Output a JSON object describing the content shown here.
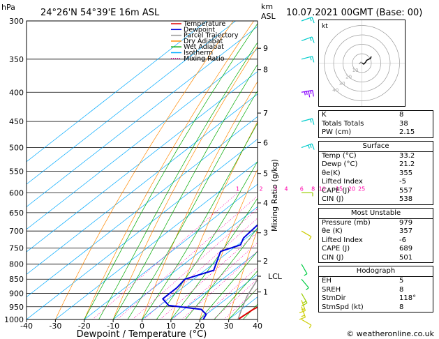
{
  "header": {
    "location": "24°26'N  54°39'E  16m  ASL",
    "pressure_unit": "hPa",
    "km_unit": "km",
    "asl_unit": "ASL",
    "valid_time": "10.07.2021  00GMT  (Base: 00)"
  },
  "chart_data": {
    "type": "line",
    "title": "",
    "xlabel": "Dewpoint / Temperature (°C)",
    "ylabel": "hPa",
    "secondary_ylabel": "Mixing Ratio (g/kg)",
    "xlim": [
      -40,
      40
    ],
    "ylim": [
      1000,
      300
    ],
    "x_ticks": [
      -40,
      -30,
      -20,
      -10,
      0,
      10,
      20,
      30,
      40
    ],
    "pressure_levels": [
      300,
      350,
      400,
      450,
      500,
      550,
      600,
      650,
      700,
      750,
      800,
      850,
      900,
      950,
      1000
    ],
    "km_ticks": [
      {
        "label": "9",
        "p": 335
      },
      {
        "label": "8",
        "p": 365
      },
      {
        "label": "7",
        "p": 435
      },
      {
        "label": "6",
        "p": 490
      },
      {
        "label": "5",
        "p": 555
      },
      {
        "label": "4",
        "p": 625
      },
      {
        "label": "3",
        "p": 705
      },
      {
        "label": "2",
        "p": 790
      },
      {
        "label": "LCL",
        "p": 840
      },
      {
        "label": "1",
        "p": 895
      }
    ],
    "mixing_ratio_labels": [
      "1",
      "2",
      "3",
      "4",
      "6",
      "8",
      "10",
      "15",
      "20",
      "25"
    ],
    "legend": {
      "position": "top-right-inside",
      "entries": [
        {
          "name": "Temperature",
          "color": "#dd0000"
        },
        {
          "name": "Dewpoint",
          "color": "#0000dd"
        },
        {
          "name": "Parcel Trajectory",
          "color": "#999999"
        },
        {
          "name": "Dry Adiabat",
          "color": "#ff8800"
        },
        {
          "name": "Wet Adiabat",
          "color": "#00aa00"
        },
        {
          "name": "Isotherm",
          "color": "#00aaff"
        },
        {
          "name": "Mixing Ratio",
          "color": "#ff00aa"
        }
      ]
    },
    "series": [
      {
        "name": "Temperature",
        "color": "#dd0000",
        "points": [
          [
            33.2,
            1000
          ],
          [
            34,
            960
          ],
          [
            36,
            930
          ],
          [
            34,
            880
          ],
          [
            31,
            830
          ],
          [
            29.5,
            780
          ],
          [
            26,
            720
          ],
          [
            22,
            650
          ],
          [
            18,
            600
          ],
          [
            12,
            540
          ],
          [
            7.5,
            500
          ],
          [
            5,
            470
          ],
          [
            2.5,
            445
          ],
          [
            -2,
            420
          ],
          [
            -4,
            400
          ],
          [
            -6,
            370
          ],
          [
            -6,
            350
          ],
          [
            -6.5,
            330
          ],
          [
            -9,
            300
          ]
        ]
      },
      {
        "name": "Dewpoint",
        "color": "#0000dd",
        "points": [
          [
            21.2,
            1000
          ],
          [
            20,
            980
          ],
          [
            16,
            960
          ],
          [
            3,
            945
          ],
          [
            -2,
            920
          ],
          [
            -2,
            880
          ],
          [
            -3,
            850
          ],
          [
            3,
            820
          ],
          [
            -3,
            760
          ],
          [
            1,
            740
          ],
          [
            -1,
            720
          ],
          [
            -2,
            680
          ],
          [
            -3,
            640
          ],
          [
            -5,
            600
          ],
          [
            -5,
            570
          ],
          [
            -4,
            550
          ],
          [
            2,
            540
          ],
          [
            1,
            500
          ],
          [
            2,
            480
          ],
          [
            2,
            460
          ],
          [
            1,
            445
          ],
          [
            -25,
            440
          ],
          [
            8,
            405
          ],
          [
            -25,
            375
          ],
          [
            -25,
            360
          ],
          [
            -30,
            350
          ],
          [
            -22,
            325
          ],
          [
            -30,
            310
          ],
          [
            -32,
            300
          ]
        ]
      },
      {
        "name": "Parcel Trajectory",
        "color": "#999999",
        "points": [
          [
            33.2,
            1000
          ],
          [
            30,
            960
          ],
          [
            26,
            910
          ],
          [
            22.5,
            855
          ],
          [
            20,
            830
          ],
          [
            19,
            760
          ],
          [
            18,
            700
          ],
          [
            16.5,
            650
          ],
          [
            14,
            600
          ],
          [
            11,
            550
          ],
          [
            7,
            500
          ],
          [
            3,
            450
          ],
          [
            -3,
            400
          ],
          [
            -10,
            350
          ],
          [
            -13,
            330
          ],
          [
            -18,
            300
          ]
        ]
      }
    ],
    "mixing_ratio_g_per_kg": [
      1,
      2,
      3,
      4,
      6,
      8,
      10,
      15,
      20,
      25
    ],
    "dry_adiabats_theta_c": [
      -30,
      -20,
      -10,
      0,
      10,
      20,
      30,
      40,
      50,
      60,
      70,
      80,
      90,
      100,
      110,
      120,
      130,
      140,
      150,
      160,
      170
    ],
    "isotherms_c": [
      -110,
      -100,
      -90,
      -80,
      -70,
      -60,
      -50,
      -40,
      -30,
      -20,
      -10,
      0,
      10,
      20,
      30,
      40
    ],
    "wet_adiabats_start_c": [
      -20,
      -15,
      -10,
      -5,
      0,
      5,
      10,
      15,
      20,
      25,
      30,
      35
    ],
    "skew_degrees_per_kpa": 38,
    "wind_barbs": [
      {
        "p": 300,
        "color": "#00cccc",
        "dir": 250,
        "kt": 10
      },
      {
        "p": 325,
        "color": "#00cccc",
        "dir": 250,
        "kt": 10
      },
      {
        "p": 350,
        "color": "#00cccc",
        "dir": 255,
        "kt": 10
      },
      {
        "p": 400,
        "color": "#8800ff",
        "dir": 260,
        "kt": 25
      },
      {
        "p": 450,
        "color": "#00cccc",
        "dir": 255,
        "kt": 10
      },
      {
        "p": 500,
        "color": "#00cccc",
        "dir": 250,
        "kt": 15
      },
      {
        "p": 600,
        "color": "#99cc00",
        "dir": 270,
        "kt": 5
      },
      {
        "p": 700,
        "color": "#cccc00",
        "dir": 300,
        "kt": 5
      },
      {
        "p": 800,
        "color": "#00cc44",
        "dir": 330,
        "kt": 5
      },
      {
        "p": 850,
        "color": "#00cc44",
        "dir": 320,
        "kt": 5
      },
      {
        "p": 900,
        "color": "#99cc00",
        "dir": 330,
        "kt": 10
      },
      {
        "p": 925,
        "color": "#cccc00",
        "dir": 340,
        "kt": 10
      },
      {
        "p": 950,
        "color": "#cccc00",
        "dir": 340,
        "kt": 10
      },
      {
        "p": 1000,
        "color": "#cccc00",
        "dir": 300,
        "kt": 5
      }
    ]
  },
  "hodograph": {
    "unit_label": "kt",
    "ring_labels": [
      "10",
      "20",
      "30",
      "40"
    ],
    "ring_radii_kt": [
      10,
      20,
      30,
      40
    ],
    "trace_uv_kt": [
      [
        0,
        0
      ],
      [
        2,
        -1
      ],
      [
        4,
        1
      ],
      [
        5,
        3
      ],
      [
        7,
        4
      ],
      [
        9,
        5
      ],
      [
        10,
        7
      ]
    ],
    "gray_uv_kt": [
      [
        -3,
        -1
      ],
      [
        -1,
        1
      ],
      [
        1,
        0
      ]
    ]
  },
  "indices": {
    "rows": [
      {
        "label": "K",
        "value": "8"
      },
      {
        "label": "Totals Totals",
        "value": "38"
      },
      {
        "label": "PW (cm)",
        "value": "2.15"
      }
    ]
  },
  "surface": {
    "title": "Surface",
    "rows": [
      {
        "label": "Temp (°C)",
        "value": "33.2"
      },
      {
        "label": "Dewp (°C)",
        "value": "21.2"
      },
      {
        "label": "θe(K)",
        "value": "355"
      },
      {
        "label": "Lifted Index",
        "value": "-5"
      },
      {
        "label": "CAPE (J)",
        "value": "557"
      },
      {
        "label": "CIN (J)",
        "value": "538"
      }
    ]
  },
  "most_unstable": {
    "title": "Most Unstable",
    "rows": [
      {
        "label": "Pressure (mb)",
        "value": "979"
      },
      {
        "label": "θe (K)",
        "value": "357"
      },
      {
        "label": "Lifted Index",
        "value": "-6"
      },
      {
        "label": "CAPE (J)",
        "value": "689"
      },
      {
        "label": "CIN (J)",
        "value": "501"
      }
    ]
  },
  "hodograph_table": {
    "title": "Hodograph",
    "rows": [
      {
        "label": "EH",
        "value": "5"
      },
      {
        "label": "SREH",
        "value": "8"
      },
      {
        "label": "StmDir",
        "value": "118°"
      },
      {
        "label": "StmSpd (kt)",
        "value": "8"
      }
    ]
  },
  "footer": {
    "copyright": "© weatheronline.co.uk"
  }
}
